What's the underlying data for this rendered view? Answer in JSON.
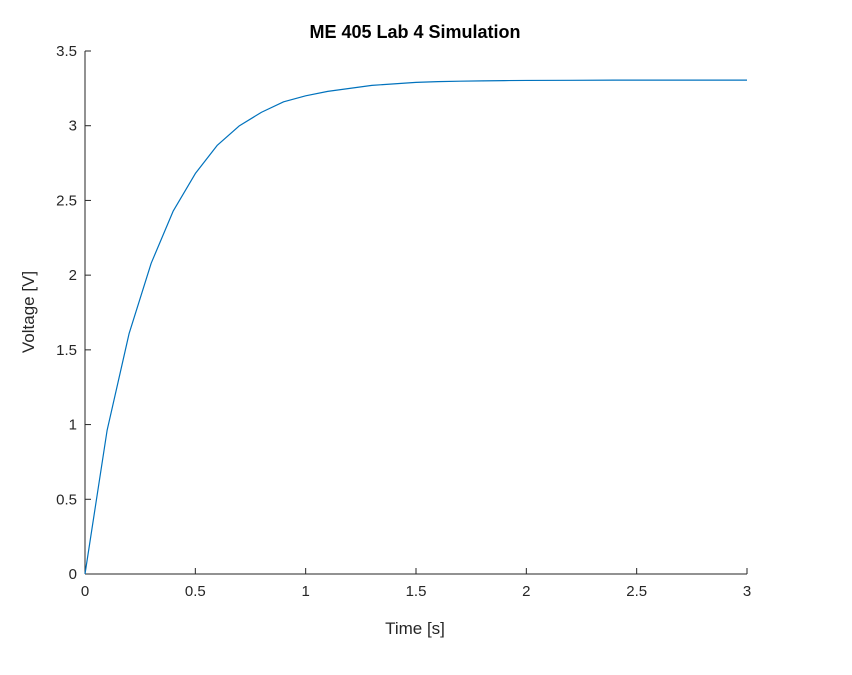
{
  "chart_data": {
    "type": "line",
    "title": "ME 405 Lab 4 Simulation",
    "xlabel": "Time [s]",
    "ylabel": "Voltage [V]",
    "xlim": [
      0,
      3
    ],
    "ylim": [
      0,
      3.5
    ],
    "xticks": [
      0,
      0.5,
      1,
      1.5,
      2,
      2.5,
      3
    ],
    "xtick_labels": [
      "0",
      "0.5",
      "1",
      "1.5",
      "2",
      "2.5",
      "3"
    ],
    "yticks": [
      0,
      0.5,
      1,
      1.5,
      2,
      2.5,
      3,
      3.5
    ],
    "ytick_labels": [
      "0",
      "0.5",
      "1",
      "1.5",
      "2",
      "2.5",
      "3",
      "3.5"
    ],
    "grid": false,
    "series": [
      {
        "color": "#0072bd",
        "x": [
          0,
          0.1,
          0.2,
          0.3,
          0.4,
          0.5,
          0.6,
          0.7,
          0.8,
          0.9,
          1.0,
          1.1,
          1.2,
          1.3,
          1.4,
          1.5,
          1.6,
          1.7,
          1.8,
          1.9,
          2.0,
          2.2,
          2.4,
          2.6,
          2.8,
          3.0
        ],
        "values": [
          0,
          0.96,
          1.61,
          2.08,
          2.43,
          2.68,
          2.87,
          3.0,
          3.09,
          3.16,
          3.2,
          3.23,
          3.25,
          3.27,
          3.28,
          3.29,
          3.295,
          3.298,
          3.3,
          3.302,
          3.303,
          3.304,
          3.305,
          3.305,
          3.305,
          3.305
        ]
      }
    ]
  }
}
